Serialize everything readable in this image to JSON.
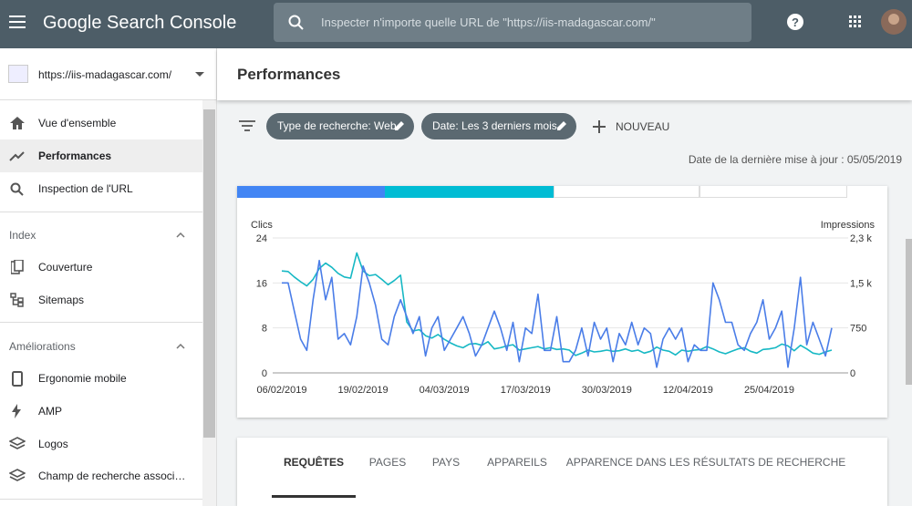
{
  "header": {
    "app_name": "Google Search Console",
    "search_placeholder": "Inspecter n'importe quelle URL de \"https://iis-madagascar.com/\""
  },
  "property": "https://iis-madagascar.com/",
  "nav": {
    "main": [
      "Vue d'ensemble",
      "Performances",
      "Inspection de l'URL"
    ],
    "sections": [
      {
        "title": "Index",
        "items": [
          "Couverture",
          "Sitemaps"
        ]
      },
      {
        "title": "Améliorations",
        "items": [
          "Ergonomie mobile",
          "AMP",
          "Logos",
          "Champ de recherche associ…"
        ]
      }
    ]
  },
  "page_title": "Performances",
  "filters": [
    "Type de recherche: Web",
    "Date: Les 3 derniers mois"
  ],
  "new_filter": "NOUVEAU",
  "last_update": "Date de la dernière mise à jour : 05/05/2019",
  "chart_data": {
    "type": "line",
    "categories": [
      "06/02/2019",
      null,
      null,
      null,
      null,
      null,
      null,
      null,
      null,
      null,
      null,
      null,
      null,
      "19/02/2019",
      null,
      null,
      null,
      null,
      null,
      null,
      null,
      null,
      null,
      null,
      null,
      null,
      "04/03/2019",
      null,
      null,
      null,
      null,
      null,
      null,
      null,
      null,
      null,
      null,
      null,
      null,
      "17/03/2019",
      null,
      null,
      null,
      null,
      null,
      null,
      null,
      null,
      null,
      null,
      null,
      null,
      "30/03/2019",
      null,
      null,
      null,
      null,
      null,
      null,
      null,
      null,
      null,
      null,
      null,
      null,
      "12/04/2019",
      null,
      null,
      null,
      null,
      null,
      null,
      null,
      null,
      null,
      null,
      null,
      null,
      "25/04/2019",
      null,
      null,
      null,
      null,
      null,
      null,
      null,
      null,
      null,
      null
    ],
    "series": [
      {
        "name": "Clics",
        "color": "#4a7de8",
        "values": [
          16,
          16,
          11,
          6,
          4,
          13,
          20,
          13,
          17,
          6,
          7,
          5,
          10,
          19,
          16,
          12,
          6,
          5,
          10,
          13,
          10,
          7,
          10,
          3,
          8,
          10,
          4,
          6,
          8,
          10,
          7,
          3,
          5,
          8,
          11,
          8,
          4,
          9,
          2,
          8,
          7,
          14,
          4,
          4,
          10,
          2,
          2,
          4,
          8,
          3,
          9,
          6,
          8,
          2,
          7,
          5,
          9,
          5,
          8,
          7,
          1,
          6,
          8,
          6,
          8,
          2,
          5,
          4,
          4,
          16,
          13,
          9,
          9,
          5,
          4,
          7,
          9,
          13,
          6,
          8,
          11,
          1,
          8,
          17,
          5,
          9,
          6,
          3,
          8
        ]
      },
      {
        "name": "Impressions",
        "color": "#16b8c4",
        "axis": "y2",
        "values": [
          1700,
          1690,
          1600,
          1520,
          1450,
          1560,
          1740,
          1830,
          1760,
          1660,
          1600,
          1580,
          2000,
          1700,
          1620,
          1640,
          1560,
          1470,
          1540,
          1630,
          850,
          700,
          720,
          620,
          580,
          640,
          560,
          500,
          450,
          420,
          480,
          490,
          460,
          520,
          400,
          420,
          450,
          470,
          380,
          400,
          420,
          440,
          400,
          420,
          390,
          400,
          380,
          290,
          330,
          380,
          350,
          360,
          380,
          360,
          370,
          400,
          360,
          380,
          330,
          360,
          430,
          380,
          360,
          300,
          380,
          360,
          380,
          390,
          440,
          400,
          350,
          320,
          360,
          400,
          420,
          360,
          330,
          390,
          400,
          420,
          480,
          450,
          370,
          460,
          400,
          330,
          310,
          350,
          380
        ]
      }
    ],
    "ylim": [
      0,
      24
    ],
    "yticks": [
      0,
      8,
      16,
      24
    ],
    "y2lim": [
      0,
      2250
    ],
    "y2ticks": [
      0,
      750,
      {
        "value": 1500,
        "label": "1,5 k"
      },
      {
        "value": 2250,
        "label": "2,3 k"
      }
    ],
    "grid": true
  },
  "tabs": [
    "REQUÊTES",
    "PAGES",
    "PAYS",
    "APPAREILS",
    "APPARENCE DANS LES RÉSULTATS DE RECHERCHE"
  ]
}
